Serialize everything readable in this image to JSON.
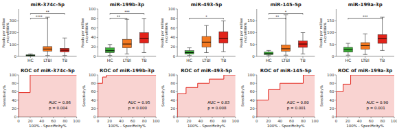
{
  "chart_data": [
    {
      "type": "box",
      "title": "miR-374c-5p",
      "y_label": "Reads per million\nmicroRNA%",
      "categories": [
        "HC",
        "LTBI",
        "TB"
      ],
      "colors": [
        "#3aaa35",
        "#f47920",
        "#e2231a"
      ],
      "boxes": [
        {
          "whislo": 2,
          "q1": 4,
          "med": 8,
          "q3": 13,
          "whishi": 20
        },
        {
          "whislo": 8,
          "q1": 45,
          "med": 62,
          "q3": 82,
          "whishi": 330
        },
        {
          "whislo": 8,
          "q1": 38,
          "med": 52,
          "q3": 68,
          "whishi": 155
        }
      ],
      "ylim": [
        0,
        400
      ],
      "yticks": [
        0,
        100,
        200,
        300
      ],
      "grid": false,
      "annotations": [
        {
          "pair": [
            "HC",
            "LTBI"
          ],
          "label": "****"
        },
        {
          "pair": [
            "HC",
            "TB"
          ],
          "label": "**"
        }
      ]
    },
    {
      "type": "box",
      "title": "miR-199b-3p",
      "y_label": "Reads per million\nmicroRNA%",
      "categories": [
        "HC",
        "LTBI",
        "TB"
      ],
      "colors": [
        "#3aaa35",
        "#f47920",
        "#e2231a"
      ],
      "boxes": [
        {
          "whislo": 2,
          "q1": 8,
          "med": 12,
          "q3": 18,
          "whishi": 25
        },
        {
          "whislo": 5,
          "q1": 18,
          "med": 26,
          "q3": 36,
          "whishi": 78
        },
        {
          "whislo": 8,
          "q1": 28,
          "med": 38,
          "q3": 50,
          "whishi": 80
        }
      ],
      "ylim": [
        0,
        100
      ],
      "yticks": [
        0,
        20,
        40,
        60,
        80,
        100
      ],
      "grid": false,
      "annotations": [
        {
          "pair": [
            "HC",
            "LTBI"
          ],
          "label": "**"
        },
        {
          "pair": [
            "HC",
            "TB"
          ],
          "label": "***"
        }
      ]
    },
    {
      "type": "box",
      "title": "miR-493-5p",
      "y_label": "Reads per million\nmicroRNA%",
      "categories": [
        "HC",
        "LTBI",
        "TB"
      ],
      "colors": [
        "#3aaa35",
        "#f47920",
        "#e2231a"
      ],
      "boxes": [
        {
          "whislo": 2,
          "q1": 5,
          "med": 8,
          "q3": 12,
          "whishi": 18
        },
        {
          "whislo": 8,
          "q1": 20,
          "med": 30,
          "q3": 42,
          "whishi": 65
        },
        {
          "whislo": 10,
          "q1": 28,
          "med": 38,
          "q3": 52,
          "whishi": 75
        }
      ],
      "ylim": [
        0,
        100
      ],
      "yticks": [
        0,
        20,
        40,
        60,
        80,
        100
      ],
      "grid": false,
      "annotations": [
        {
          "pair": [
            "HC",
            "TB"
          ],
          "label": "*"
        }
      ]
    },
    {
      "type": "box",
      "title": "miR-145-5p",
      "y_label": "Reads per million\nmicroRNA%",
      "categories": [
        "HC",
        "LTBI",
        "TB"
      ],
      "colors": [
        "#3aaa35",
        "#f47920",
        "#e2231a"
      ],
      "boxes": [
        {
          "whislo": 3,
          "q1": 8,
          "med": 12,
          "q3": 18,
          "whishi": 25
        },
        {
          "whislo": 5,
          "q1": 22,
          "med": 32,
          "q3": 48,
          "whishi": 175
        },
        {
          "whislo": 10,
          "q1": 38,
          "med": 52,
          "q3": 65,
          "whishi": 100
        }
      ],
      "ylim": [
        0,
        200
      ],
      "yticks": [
        0,
        50,
        100,
        150
      ],
      "grid": false,
      "annotations": [
        {
          "pair": [
            "HC",
            "LTBI"
          ],
          "label": "**"
        },
        {
          "pair": [
            "HC",
            "TB"
          ],
          "label": "*"
        }
      ]
    },
    {
      "type": "box",
      "title": "miR-199a-3p",
      "y_label": "Reads per million\nmicroRNA%",
      "categories": [
        "HC",
        "LTBI",
        "TB"
      ],
      "colors": [
        "#3aaa35",
        "#f47920",
        "#e2231a"
      ],
      "boxes": [
        {
          "whislo": 5,
          "q1": 18,
          "med": 28,
          "q3": 38,
          "whishi": 55
        },
        {
          "whislo": 8,
          "q1": 30,
          "med": 45,
          "q3": 58,
          "whishi": 95
        },
        {
          "whislo": 25,
          "q1": 55,
          "med": 75,
          "q3": 92,
          "whishi": 165
        }
      ],
      "ylim": [
        0,
        200
      ],
      "yticks": [
        0,
        50,
        100,
        150
      ],
      "grid": false,
      "annotations": [
        {
          "pair": [
            "HC",
            "TB"
          ],
          "label": "***"
        }
      ]
    },
    {
      "type": "area",
      "title": "ROC of miR-374c-5p",
      "x_label": "100% - Specificity%",
      "y_label": "Sensitivity%",
      "x": [
        0,
        0,
        20,
        20,
        100
      ],
      "values": [
        0,
        58,
        58,
        100,
        100
      ],
      "color": "#e2231a",
      "xlim": [
        0,
        100
      ],
      "ylim": [
        0,
        100
      ],
      "xticks": [
        0,
        20,
        40,
        60,
        80,
        100
      ],
      "yticks": [
        0,
        20,
        40,
        60,
        80,
        100
      ],
      "grid": false,
      "annotations": [
        "AUC = 0.86",
        "p = 0.004"
      ]
    },
    {
      "type": "area",
      "title": "ROC of miR-199b-3p",
      "x_label": "100% - Specificity%",
      "y_label": "Sensitivity%",
      "x": [
        0,
        0,
        8,
        8,
        15,
        15,
        100
      ],
      "values": [
        0,
        80,
        80,
        95,
        95,
        100,
        100
      ],
      "color": "#e2231a",
      "xlim": [
        0,
        100
      ],
      "ylim": [
        0,
        100
      ],
      "xticks": [
        0,
        20,
        40,
        60,
        80,
        100
      ],
      "yticks": [
        0,
        20,
        40,
        60,
        80,
        100
      ],
      "grid": false,
      "annotations": [
        "AUC = 0.95",
        "p = 0.000"
      ]
    },
    {
      "type": "area",
      "title": "ROC of miR-493-5p",
      "x_label": "100% - Specificity%",
      "y_label": "Sensitivity%",
      "x": [
        0,
        0,
        15,
        15,
        35,
        35,
        55,
        55,
        80,
        80,
        100
      ],
      "values": [
        0,
        55,
        55,
        70,
        70,
        80,
        80,
        90,
        90,
        100,
        100
      ],
      "color": "#e2231a",
      "xlim": [
        0,
        100
      ],
      "ylim": [
        0,
        100
      ],
      "xticks": [
        0,
        20,
        40,
        60,
        80,
        100
      ],
      "yticks": [
        0,
        20,
        40,
        60,
        80,
        100
      ],
      "grid": false,
      "annotations": [
        "AUC = 0.83",
        "p = 0.008"
      ]
    },
    {
      "type": "area",
      "title": "ROC of miR-145-5p",
      "x_label": "100% - Specificity%",
      "y_label": "Sensitivity%",
      "x": [
        0,
        0,
        20,
        20,
        40,
        40,
        80,
        80,
        100
      ],
      "values": [
        0,
        40,
        40,
        65,
        65,
        80,
        80,
        100,
        100
      ],
      "color": "#e2231a",
      "xlim": [
        0,
        100
      ],
      "ylim": [
        0,
        100
      ],
      "xticks": [
        0,
        20,
        40,
        60,
        80,
        100
      ],
      "yticks": [
        0,
        20,
        40,
        60,
        80,
        100
      ],
      "grid": false,
      "annotations": [
        "AUC = 0.80",
        "p = 0.001"
      ]
    },
    {
      "type": "area",
      "title": "ROC of miR-199a-3p",
      "x_label": "100% - Specificity%",
      "y_label": "Sensitivity%",
      "x": [
        0,
        0,
        12,
        12,
        25,
        25,
        100
      ],
      "values": [
        0,
        60,
        60,
        78,
        78,
        100,
        100
      ],
      "color": "#e2231a",
      "xlim": [
        0,
        100
      ],
      "ylim": [
        0,
        100
      ],
      "xticks": [
        0,
        20,
        40,
        60,
        80,
        100
      ],
      "yticks": [
        0,
        20,
        40,
        60,
        80,
        100
      ],
      "grid": false,
      "annotations": [
        "AUC = 0.90",
        "p = 0.001"
      ]
    }
  ]
}
